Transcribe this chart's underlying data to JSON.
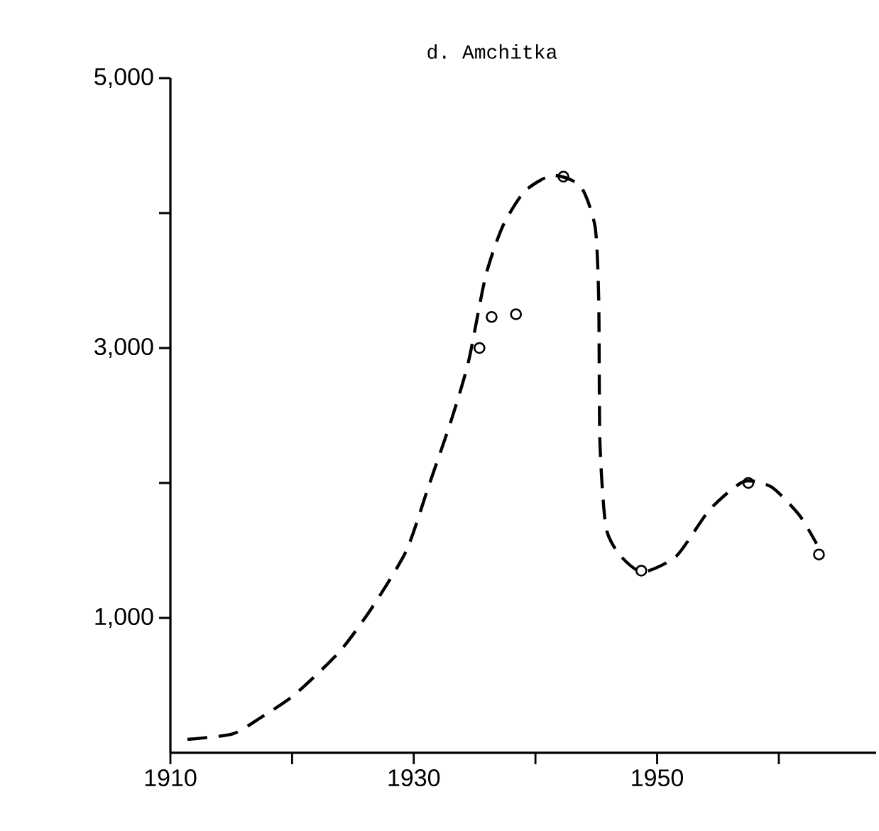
{
  "chart_data": {
    "type": "scatter",
    "title": "d.   Amchitka",
    "xlim": [
      1910,
      1968
    ],
    "ylim": [
      0,
      5000
    ],
    "xticks": [
      1910,
      {
        "value": 1920,
        "label": null
      },
      1930,
      {
        "value": 1940,
        "label": null
      },
      1950,
      {
        "value": 1960,
        "label": null
      }
    ],
    "yticks": [
      {
        "value": 1000,
        "label": "1,000"
      },
      {
        "value": 2000,
        "label": null
      },
      {
        "value": 3000,
        "label": "3,000"
      },
      {
        "value": 4000,
        "label": null
      },
      {
        "value": 5000,
        "label": "5,000"
      }
    ],
    "grid": false,
    "series": [
      {
        "marker": "circle",
        "color": "#000000",
        "x": [
          1935.4,
          1936.4,
          1938.4,
          1942.3,
          1948.7,
          1957.5,
          1963.3
        ],
        "values": [
          3000,
          3230,
          3250,
          4270,
          1350,
          2000,
          1470
        ]
      },
      {
        "type": "line",
        "marker": "none",
        "line_style": "dashed",
        "color": "#000000",
        "x": [
          1911.4,
          1915.1,
          1917.4,
          1920.2,
          1923.9,
          1926.6,
          1929.4,
          1931.2,
          1933.1,
          1934.5,
          1935.9,
          1937.3,
          1939.1,
          1941.4,
          1943.7,
          1944.9,
          1945.2,
          1945.3,
          1945.8,
          1947.0,
          1948.8,
          1951.6,
          1954.3,
          1957.1,
          1959.4,
          1961.7,
          1963.1
        ],
        "values": [
          100,
          140,
          260,
          430,
          750,
          1080,
          1500,
          1970,
          2470,
          2900,
          3530,
          3900,
          4160,
          4280,
          4200,
          3900,
          3360,
          2300,
          1670,
          1460,
          1340,
          1460,
          1800,
          2010,
          1970,
          1760,
          1550
        ]
      }
    ]
  }
}
